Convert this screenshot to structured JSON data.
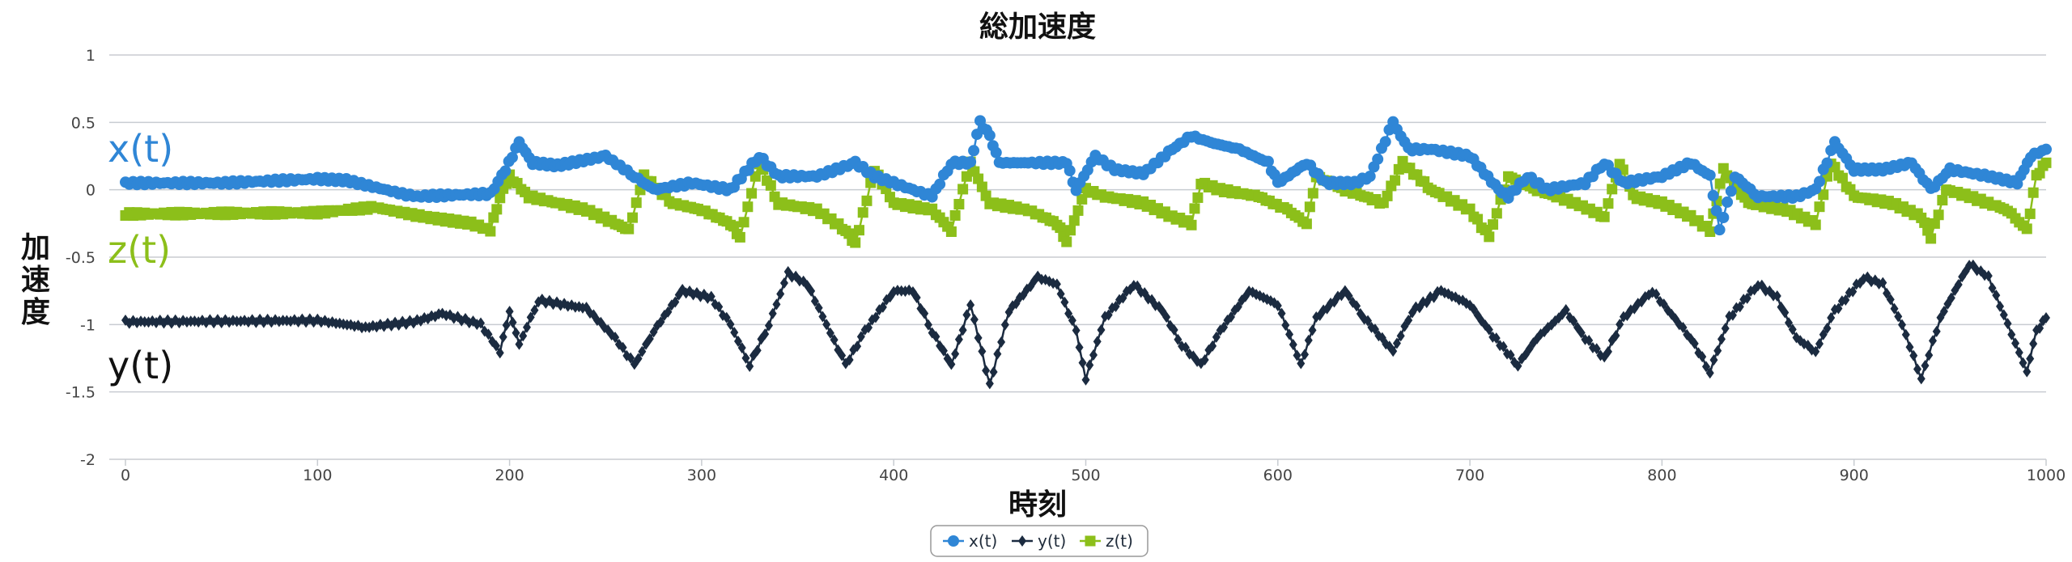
{
  "chart_data": {
    "type": "line",
    "title": "総加速度",
    "xlabel": "時刻",
    "ylabel": "加速度",
    "xlim": [
      0,
      1000
    ],
    "ylim": [
      -2,
      1
    ],
    "x_ticks": [
      "0",
      "100",
      "200",
      "300",
      "400",
      "500",
      "600",
      "700",
      "800",
      "900",
      "1000"
    ],
    "y_ticks": [
      "1",
      "0.5",
      "0",
      "-0.5",
      "-1",
      "-1.5",
      "-2"
    ],
    "grid": true,
    "legend_position": "bottom-center",
    "annotations": [
      {
        "text": "x(t)",
        "color": "#2f86d6"
      },
      {
        "text": "z(t)",
        "color": "#8cbf1a"
      },
      {
        "text": "y(t)",
        "color": "#111111"
      }
    ],
    "series": [
      {
        "name": "x(t)",
        "color": "#2f86d6",
        "marker": "circle",
        "keypoints": [
          [
            0,
            0.05
          ],
          [
            50,
            0.05
          ],
          [
            100,
            0.08
          ],
          [
            115,
            0.07
          ],
          [
            150,
            -0.05
          ],
          [
            190,
            -0.03
          ],
          [
            196,
            0.1
          ],
          [
            205,
            0.35
          ],
          [
            212,
            0.2
          ],
          [
            225,
            0.18
          ],
          [
            250,
            0.25
          ],
          [
            265,
            0.1
          ],
          [
            275,
            0.0
          ],
          [
            295,
            0.05
          ],
          [
            315,
            0.0
          ],
          [
            330,
            0.25
          ],
          [
            340,
            0.1
          ],
          [
            360,
            0.1
          ],
          [
            380,
            0.2
          ],
          [
            390,
            0.1
          ],
          [
            400,
            0.05
          ],
          [
            420,
            -0.05
          ],
          [
            430,
            0.2
          ],
          [
            440,
            0.2
          ],
          [
            445,
            0.5
          ],
          [
            450,
            0.4
          ],
          [
            455,
            0.2
          ],
          [
            470,
            0.2
          ],
          [
            480,
            0.2
          ],
          [
            490,
            0.2
          ],
          [
            495,
            0.0
          ],
          [
            505,
            0.25
          ],
          [
            515,
            0.15
          ],
          [
            530,
            0.12
          ],
          [
            545,
            0.3
          ],
          [
            555,
            0.4
          ],
          [
            565,
            0.35
          ],
          [
            580,
            0.3
          ],
          [
            595,
            0.2
          ],
          [
            600,
            0.05
          ],
          [
            615,
            0.2
          ],
          [
            625,
            0.05
          ],
          [
            640,
            0.05
          ],
          [
            648,
            0.1
          ],
          [
            660,
            0.5
          ],
          [
            668,
            0.3
          ],
          [
            680,
            0.3
          ],
          [
            700,
            0.25
          ],
          [
            715,
            0.0
          ],
          [
            720,
            -0.05
          ],
          [
            730,
            0.1
          ],
          [
            740,
            0.0
          ],
          [
            760,
            0.05
          ],
          [
            770,
            0.2
          ],
          [
            780,
            0.05
          ],
          [
            800,
            0.1
          ],
          [
            815,
            0.2
          ],
          [
            825,
            0.1
          ],
          [
            830,
            -0.3
          ],
          [
            838,
            0.1
          ],
          [
            850,
            -0.05
          ],
          [
            870,
            -0.05
          ],
          [
            880,
            0.0
          ],
          [
            890,
            0.35
          ],
          [
            900,
            0.15
          ],
          [
            915,
            0.15
          ],
          [
            930,
            0.2
          ],
          [
            940,
            0.0
          ],
          [
            950,
            0.15
          ],
          [
            970,
            0.1
          ],
          [
            985,
            0.05
          ],
          [
            992,
            0.25
          ],
          [
            1000,
            0.3
          ]
        ]
      },
      {
        "name": "y(t)",
        "color": "#1b2b40",
        "marker": "diamond",
        "keypoints": [
          [
            0,
            -0.98
          ],
          [
            100,
            -0.97
          ],
          [
            125,
            -1.02
          ],
          [
            150,
            -0.98
          ],
          [
            165,
            -0.92
          ],
          [
            185,
            -1.0
          ],
          [
            195,
            -1.2
          ],
          [
            200,
            -0.9
          ],
          [
            205,
            -1.15
          ],
          [
            215,
            -0.82
          ],
          [
            240,
            -0.88
          ],
          [
            255,
            -1.1
          ],
          [
            265,
            -1.3
          ],
          [
            275,
            -1.05
          ],
          [
            290,
            -0.75
          ],
          [
            305,
            -0.8
          ],
          [
            315,
            -1.0
          ],
          [
            325,
            -1.3
          ],
          [
            335,
            -1.0
          ],
          [
            345,
            -0.62
          ],
          [
            355,
            -0.7
          ],
          [
            365,
            -1.0
          ],
          [
            375,
            -1.3
          ],
          [
            385,
            -1.05
          ],
          [
            400,
            -0.75
          ],
          [
            410,
            -0.75
          ],
          [
            420,
            -1.05
          ],
          [
            430,
            -1.3
          ],
          [
            440,
            -0.85
          ],
          [
            450,
            -1.45
          ],
          [
            460,
            -0.9
          ],
          [
            475,
            -0.65
          ],
          [
            485,
            -0.7
          ],
          [
            495,
            -1.05
          ],
          [
            500,
            -1.4
          ],
          [
            510,
            -0.95
          ],
          [
            525,
            -0.7
          ],
          [
            540,
            -0.9
          ],
          [
            550,
            -1.15
          ],
          [
            560,
            -1.3
          ],
          [
            570,
            -1.05
          ],
          [
            585,
            -0.75
          ],
          [
            600,
            -0.85
          ],
          [
            612,
            -1.3
          ],
          [
            620,
            -0.95
          ],
          [
            635,
            -0.75
          ],
          [
            645,
            -0.95
          ],
          [
            660,
            -1.2
          ],
          [
            670,
            -0.9
          ],
          [
            685,
            -0.75
          ],
          [
            700,
            -0.85
          ],
          [
            710,
            -1.05
          ],
          [
            725,
            -1.3
          ],
          [
            735,
            -1.1
          ],
          [
            750,
            -0.9
          ],
          [
            760,
            -1.1
          ],
          [
            770,
            -1.25
          ],
          [
            780,
            -0.95
          ],
          [
            795,
            -0.75
          ],
          [
            815,
            -1.1
          ],
          [
            825,
            -1.35
          ],
          [
            835,
            -0.95
          ],
          [
            850,
            -0.7
          ],
          [
            860,
            -0.8
          ],
          [
            870,
            -1.1
          ],
          [
            880,
            -1.2
          ],
          [
            890,
            -0.9
          ],
          [
            905,
            -0.65
          ],
          [
            915,
            -0.7
          ],
          [
            925,
            -1.0
          ],
          [
            935,
            -1.4
          ],
          [
            945,
            -0.95
          ],
          [
            960,
            -0.55
          ],
          [
            970,
            -0.65
          ],
          [
            980,
            -1.0
          ],
          [
            990,
            -1.35
          ],
          [
            995,
            -1.05
          ],
          [
            1000,
            -0.95
          ]
        ]
      },
      {
        "name": "z(t)",
        "color": "#8cbf1a",
        "marker": "square",
        "keypoints": [
          [
            0,
            -0.18
          ],
          [
            100,
            -0.17
          ],
          [
            130,
            -0.13
          ],
          [
            155,
            -0.2
          ],
          [
            180,
            -0.25
          ],
          [
            190,
            -0.3
          ],
          [
            195,
            -0.05
          ],
          [
            200,
            0.1
          ],
          [
            210,
            -0.05
          ],
          [
            240,
            -0.15
          ],
          [
            255,
            -0.25
          ],
          [
            262,
            -0.3
          ],
          [
            270,
            0.1
          ],
          [
            285,
            -0.1
          ],
          [
            300,
            -0.15
          ],
          [
            315,
            -0.25
          ],
          [
            320,
            -0.35
          ],
          [
            330,
            0.2
          ],
          [
            340,
            -0.1
          ],
          [
            360,
            -0.15
          ],
          [
            375,
            -0.3
          ],
          [
            380,
            -0.4
          ],
          [
            390,
            0.15
          ],
          [
            400,
            -0.1
          ],
          [
            420,
            -0.15
          ],
          [
            430,
            -0.3
          ],
          [
            440,
            0.2
          ],
          [
            450,
            -0.1
          ],
          [
            470,
            -0.15
          ],
          [
            485,
            -0.25
          ],
          [
            490,
            -0.38
          ],
          [
            500,
            0.0
          ],
          [
            510,
            -0.05
          ],
          [
            530,
            -0.1
          ],
          [
            545,
            -0.2
          ],
          [
            555,
            -0.25
          ],
          [
            560,
            0.05
          ],
          [
            570,
            0.0
          ],
          [
            590,
            -0.05
          ],
          [
            605,
            -0.15
          ],
          [
            615,
            -0.25
          ],
          [
            620,
            0.1
          ],
          [
            635,
            0.0
          ],
          [
            655,
            -0.1
          ],
          [
            665,
            0.2
          ],
          [
            680,
            0.0
          ],
          [
            700,
            -0.15
          ],
          [
            710,
            -0.35
          ],
          [
            720,
            0.1
          ],
          [
            735,
            0.0
          ],
          [
            755,
            -0.1
          ],
          [
            770,
            -0.2
          ],
          [
            778,
            0.2
          ],
          [
            785,
            -0.05
          ],
          [
            800,
            -0.1
          ],
          [
            815,
            -0.2
          ],
          [
            825,
            -0.3
          ],
          [
            832,
            0.15
          ],
          [
            845,
            -0.1
          ],
          [
            865,
            -0.15
          ],
          [
            880,
            -0.25
          ],
          [
            888,
            0.2
          ],
          [
            900,
            -0.05
          ],
          [
            920,
            -0.1
          ],
          [
            935,
            -0.2
          ],
          [
            940,
            -0.35
          ],
          [
            948,
            0.0
          ],
          [
            960,
            -0.05
          ],
          [
            980,
            -0.15
          ],
          [
            990,
            -0.3
          ],
          [
            995,
            0.1
          ],
          [
            1000,
            0.2
          ]
        ]
      }
    ]
  }
}
